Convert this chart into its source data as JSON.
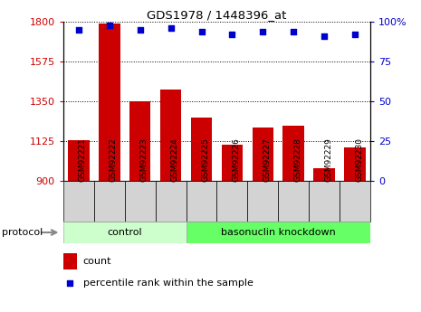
{
  "title": "GDS1978 / 1448396_at",
  "samples": [
    "GSM92221",
    "GSM92222",
    "GSM92223",
    "GSM92224",
    "GSM92225",
    "GSM92226",
    "GSM92227",
    "GSM92228",
    "GSM92229",
    "GSM92230"
  ],
  "counts": [
    1130,
    1790,
    1350,
    1415,
    1260,
    1105,
    1200,
    1210,
    970,
    1090
  ],
  "percentile_ranks": [
    95,
    98,
    95,
    96,
    94,
    92,
    94,
    94,
    91,
    92
  ],
  "ylim_left": [
    900,
    1800
  ],
  "ylim_right": [
    0,
    100
  ],
  "yticks_left": [
    900,
    1125,
    1350,
    1575,
    1800
  ],
  "yticks_right": [
    0,
    25,
    50,
    75,
    100
  ],
  "bar_color": "#cc0000",
  "dot_color": "#0000cc",
  "control_color": "#ccffcc",
  "knockdown_color": "#66ff66",
  "control_indices": [
    0,
    1,
    2,
    3
  ],
  "knockdown_indices": [
    4,
    5,
    6,
    7,
    8,
    9
  ],
  "legend_count_label": "count",
  "legend_percentile_label": "percentile rank within the sample",
  "bar_width": 0.7,
  "protocol_label": "protocol"
}
